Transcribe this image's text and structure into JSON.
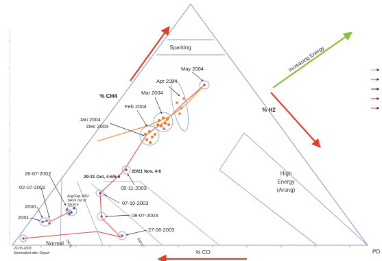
{
  "region_labels": {
    "sparking": "Sparking",
    "normal": "Normal",
    "high_energy_1": "High",
    "high_energy_2": "Energy",
    "high_energy_3": "(Arong)"
  },
  "axis_labels": {
    "ch4": "% CH4",
    "h2": "% H2",
    "co": "% CO",
    "increasing_energy": "Increasing Energy",
    "pd": "PD"
  },
  "temperature_labels": {
    "t1": "150°C",
    "t2": "500°C"
  },
  "point_labels": {
    "may_2004": "May 2004",
    "apr_2004": "Apr 2004",
    "mar_2004": "Mar 2004",
    "feb_2004": "Feb 2004",
    "jan_2004": "Jan 2004",
    "dec_2003": "Dec 2003",
    "oct_2003_span": "29-31 Oct, 4-6/5-6",
    "nov_2003_span": "20/21 Nov, 4-6",
    "d_05_11_2003": "05-11-2003",
    "d_07_10_2003": "07-10-2003",
    "d_08_07_2003": "08-07-2003",
    "d_27_06_2003": "27-06-2003",
    "d_26_07_2002": "26-07-2002",
    "d_02_07_2002": "02-07-2002",
    "aug_2002_1": "Aug/Sep 2002",
    "aug_2002_2": "Taken out of",
    "aug_2002_3": "Service",
    "y2000": "2000",
    "y2001": "2001",
    "d_2003_bottom": "22-05-2003",
    "d_2003_bottom_2": "Reinstalled after Repair"
  },
  "colors": {
    "arrow_red": "#e0402a",
    "arrow_green": "#8cbf3a",
    "track_red": "#e06060",
    "track_orange": "#f29a4a",
    "dots_orange": "#f47a20",
    "ellipse_blue": "#8fa6c8",
    "triangle_line": "#8aa0c4"
  }
}
